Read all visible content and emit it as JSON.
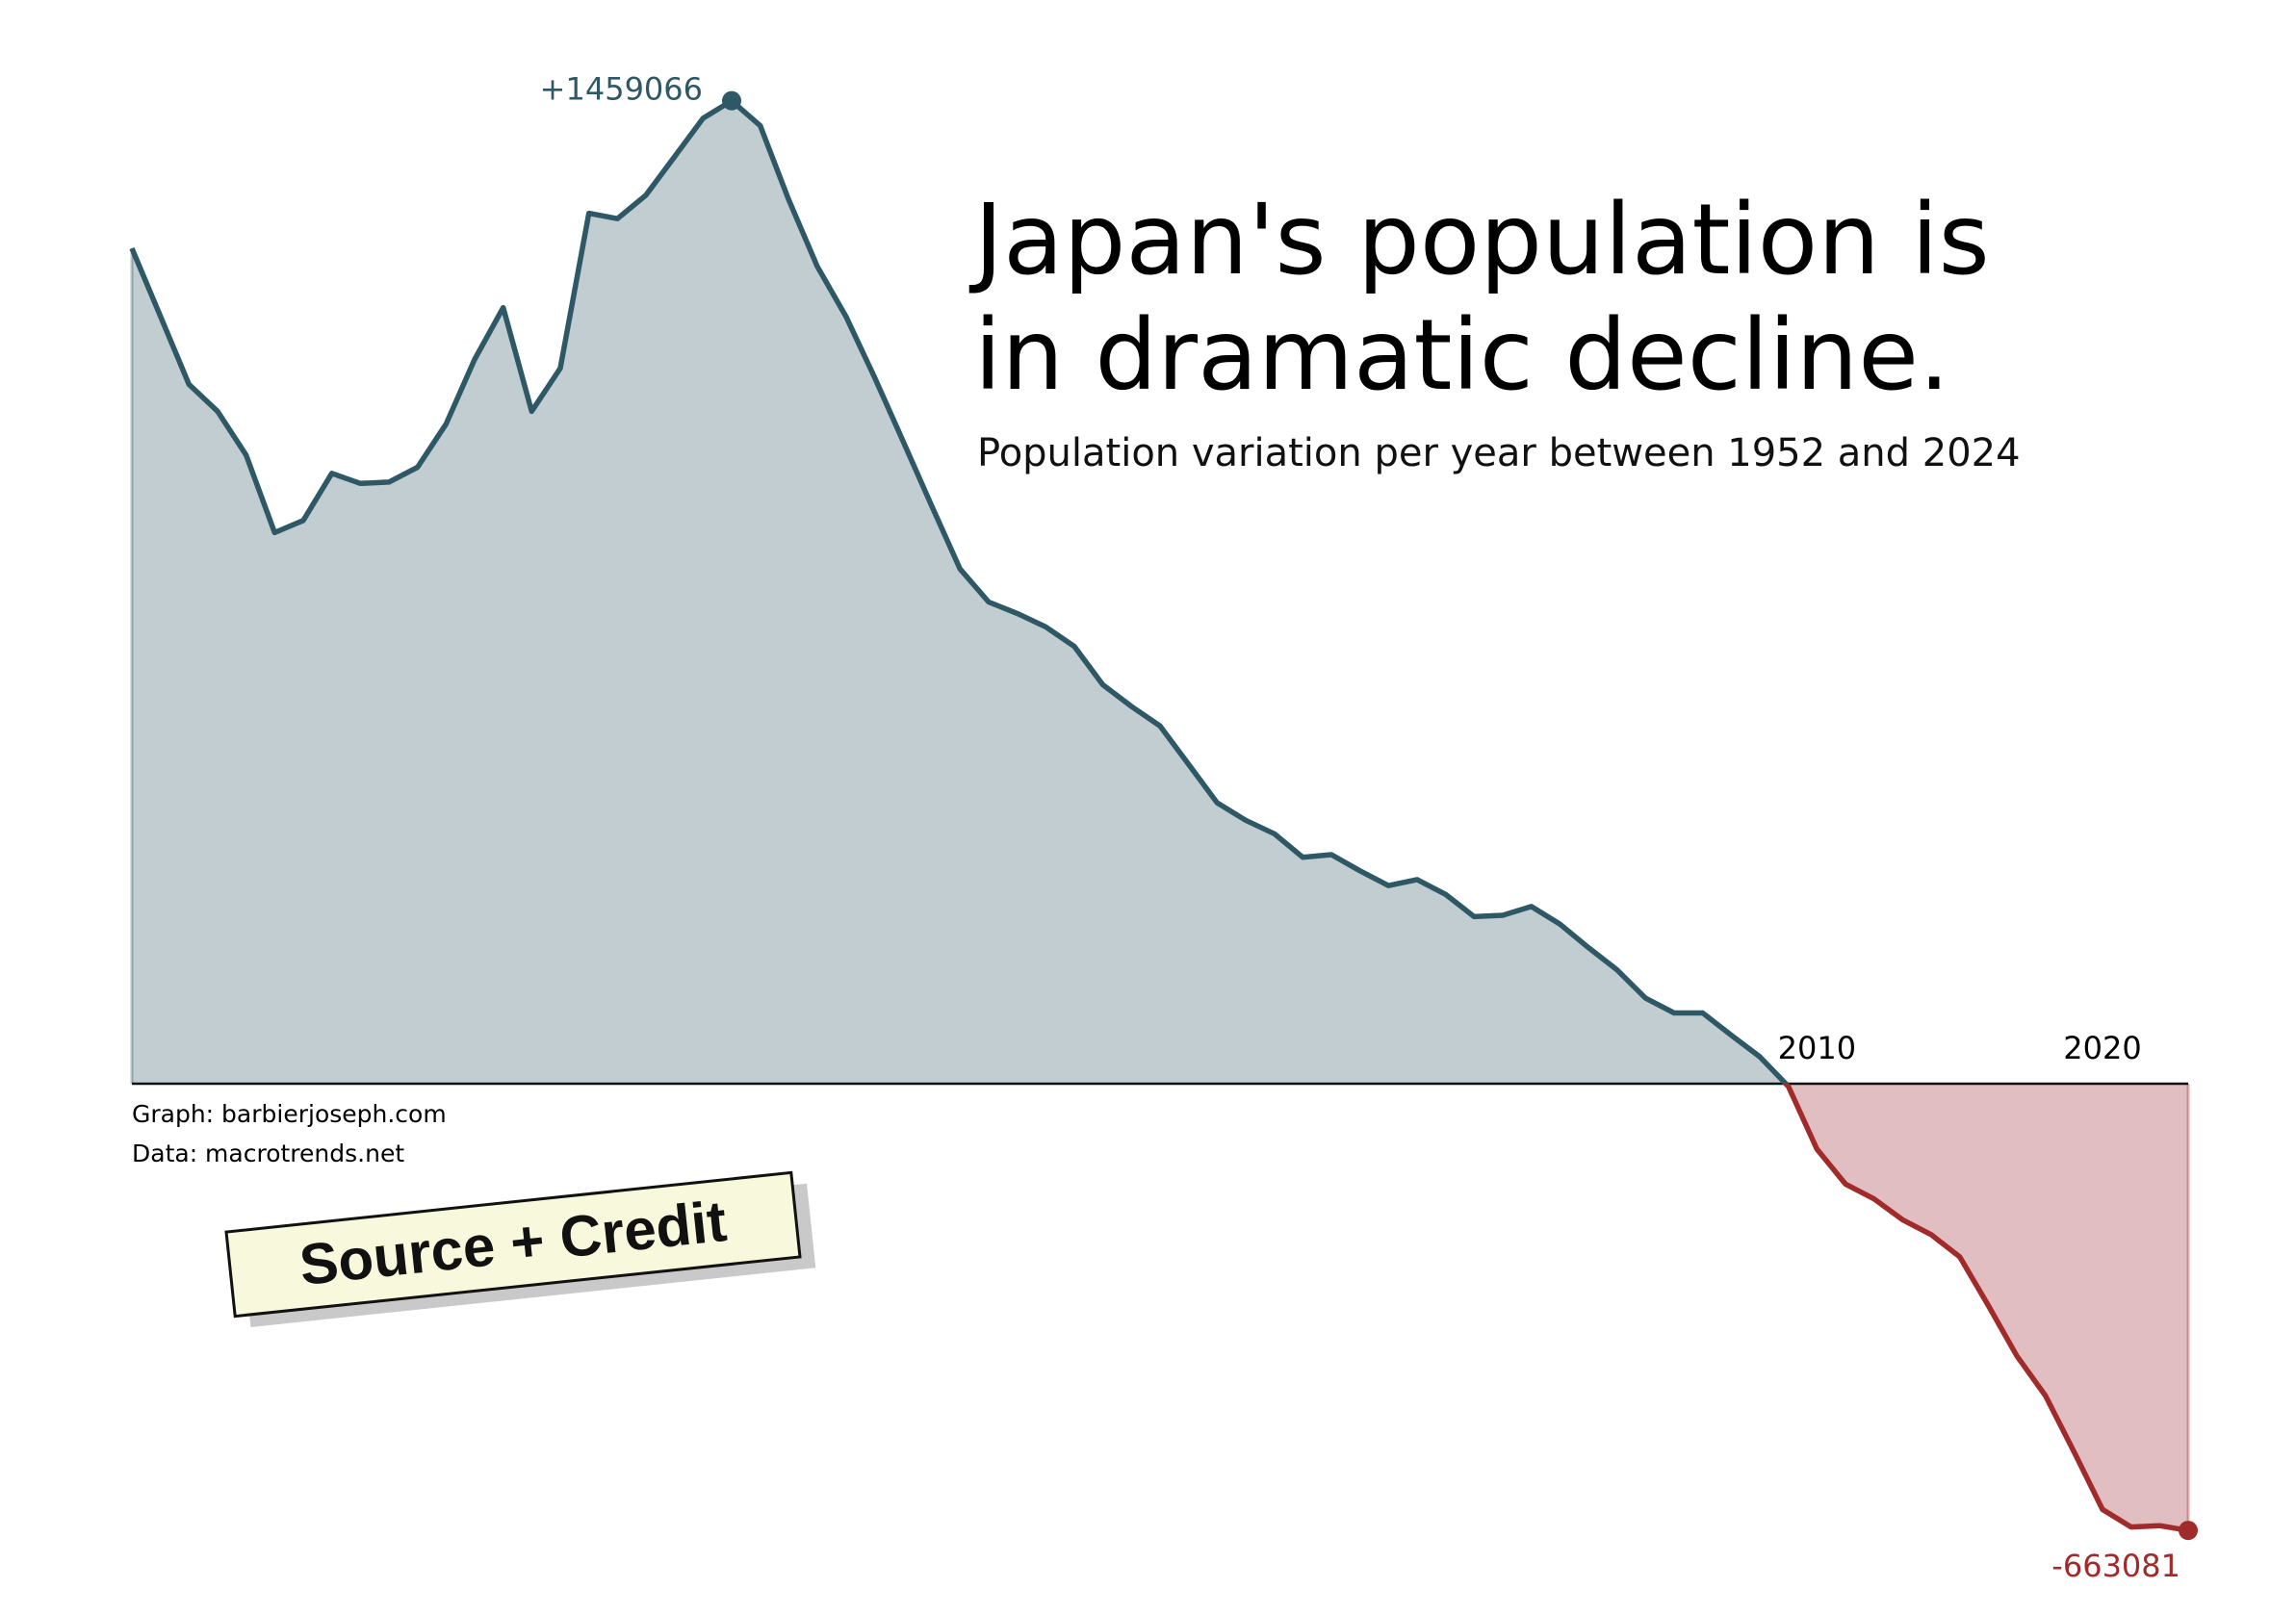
{
  "chart_data": {
    "type": "area",
    "title": "Japan's population is",
    "title_line2": "in dramatic decline.",
    "subtitle": "Population variation per year between 1952 and 2024",
    "x": [
      1951,
      1952,
      1953,
      1954,
      1955,
      1956,
      1957,
      1958,
      1959,
      1960,
      1961,
      1962,
      1963,
      1964,
      1965,
      1966,
      1967,
      1968,
      1969,
      1970,
      1971,
      1972,
      1973,
      1974,
      1975,
      1976,
      1977,
      1978,
      1979,
      1980,
      1981,
      1982,
      1983,
      1984,
      1985,
      1986,
      1987,
      1988,
      1989,
      1990,
      1991,
      1992,
      1993,
      1994,
      1995,
      1996,
      1997,
      1998,
      1999,
      2000,
      2001,
      2002,
      2003,
      2004,
      2005,
      2006,
      2007,
      2008,
      2009,
      2010,
      2011,
      2012,
      2013,
      2014,
      2015,
      2016,
      2017,
      2018,
      2019,
      2020,
      2021,
      2022,
      2023
    ],
    "values": [
      1240000,
      1139000,
      1038000,
      998000,
      933000,
      818000,
      836000,
      906000,
      891000,
      893000,
      915000,
      979000,
      1075000,
      1152000,
      998000,
      1062000,
      1292000,
      1284000,
      1319000,
      1376000,
      1433000,
      1459066,
      1422000,
      1312000,
      1213000,
      1139000,
      1049000,
      954000,
      858000,
      764000,
      715000,
      698000,
      678000,
      649000,
      592000,
      560000,
      531000,
      474000,
      417000,
      391000,
      371000,
      336000,
      340000,
      316000,
      294000,
      303000,
      281000,
      248000,
      250000,
      263000,
      237000,
      202000,
      169000,
      127000,
      105000,
      105000,
      72000,
      40000,
      -4000,
      -97000,
      -149000,
      -171000,
      -202000,
      -224000,
      -257000,
      -329000,
      -404000,
      -463000,
      -546000,
      -632000,
      -658000,
      -656000,
      -663081
    ],
    "color": "#2e5866",
    "fill": "#c1cdd1",
    "negative_color": "#a12a2a",
    "negative_fill": "#e1bec1",
    "xlim": [
      1951,
      2023
    ],
    "xticks": [
      1960,
      1970,
      1980,
      1990,
      2000,
      2010,
      2020
    ],
    "ylim": [
      -700000,
      1500000
    ],
    "max_label": "+1459066",
    "min_label": "-663081",
    "credits": [
      "Graph: barbierjoseph.com",
      "Data: macrotrends.net"
    ],
    "badge": "Source + Credit"
  }
}
